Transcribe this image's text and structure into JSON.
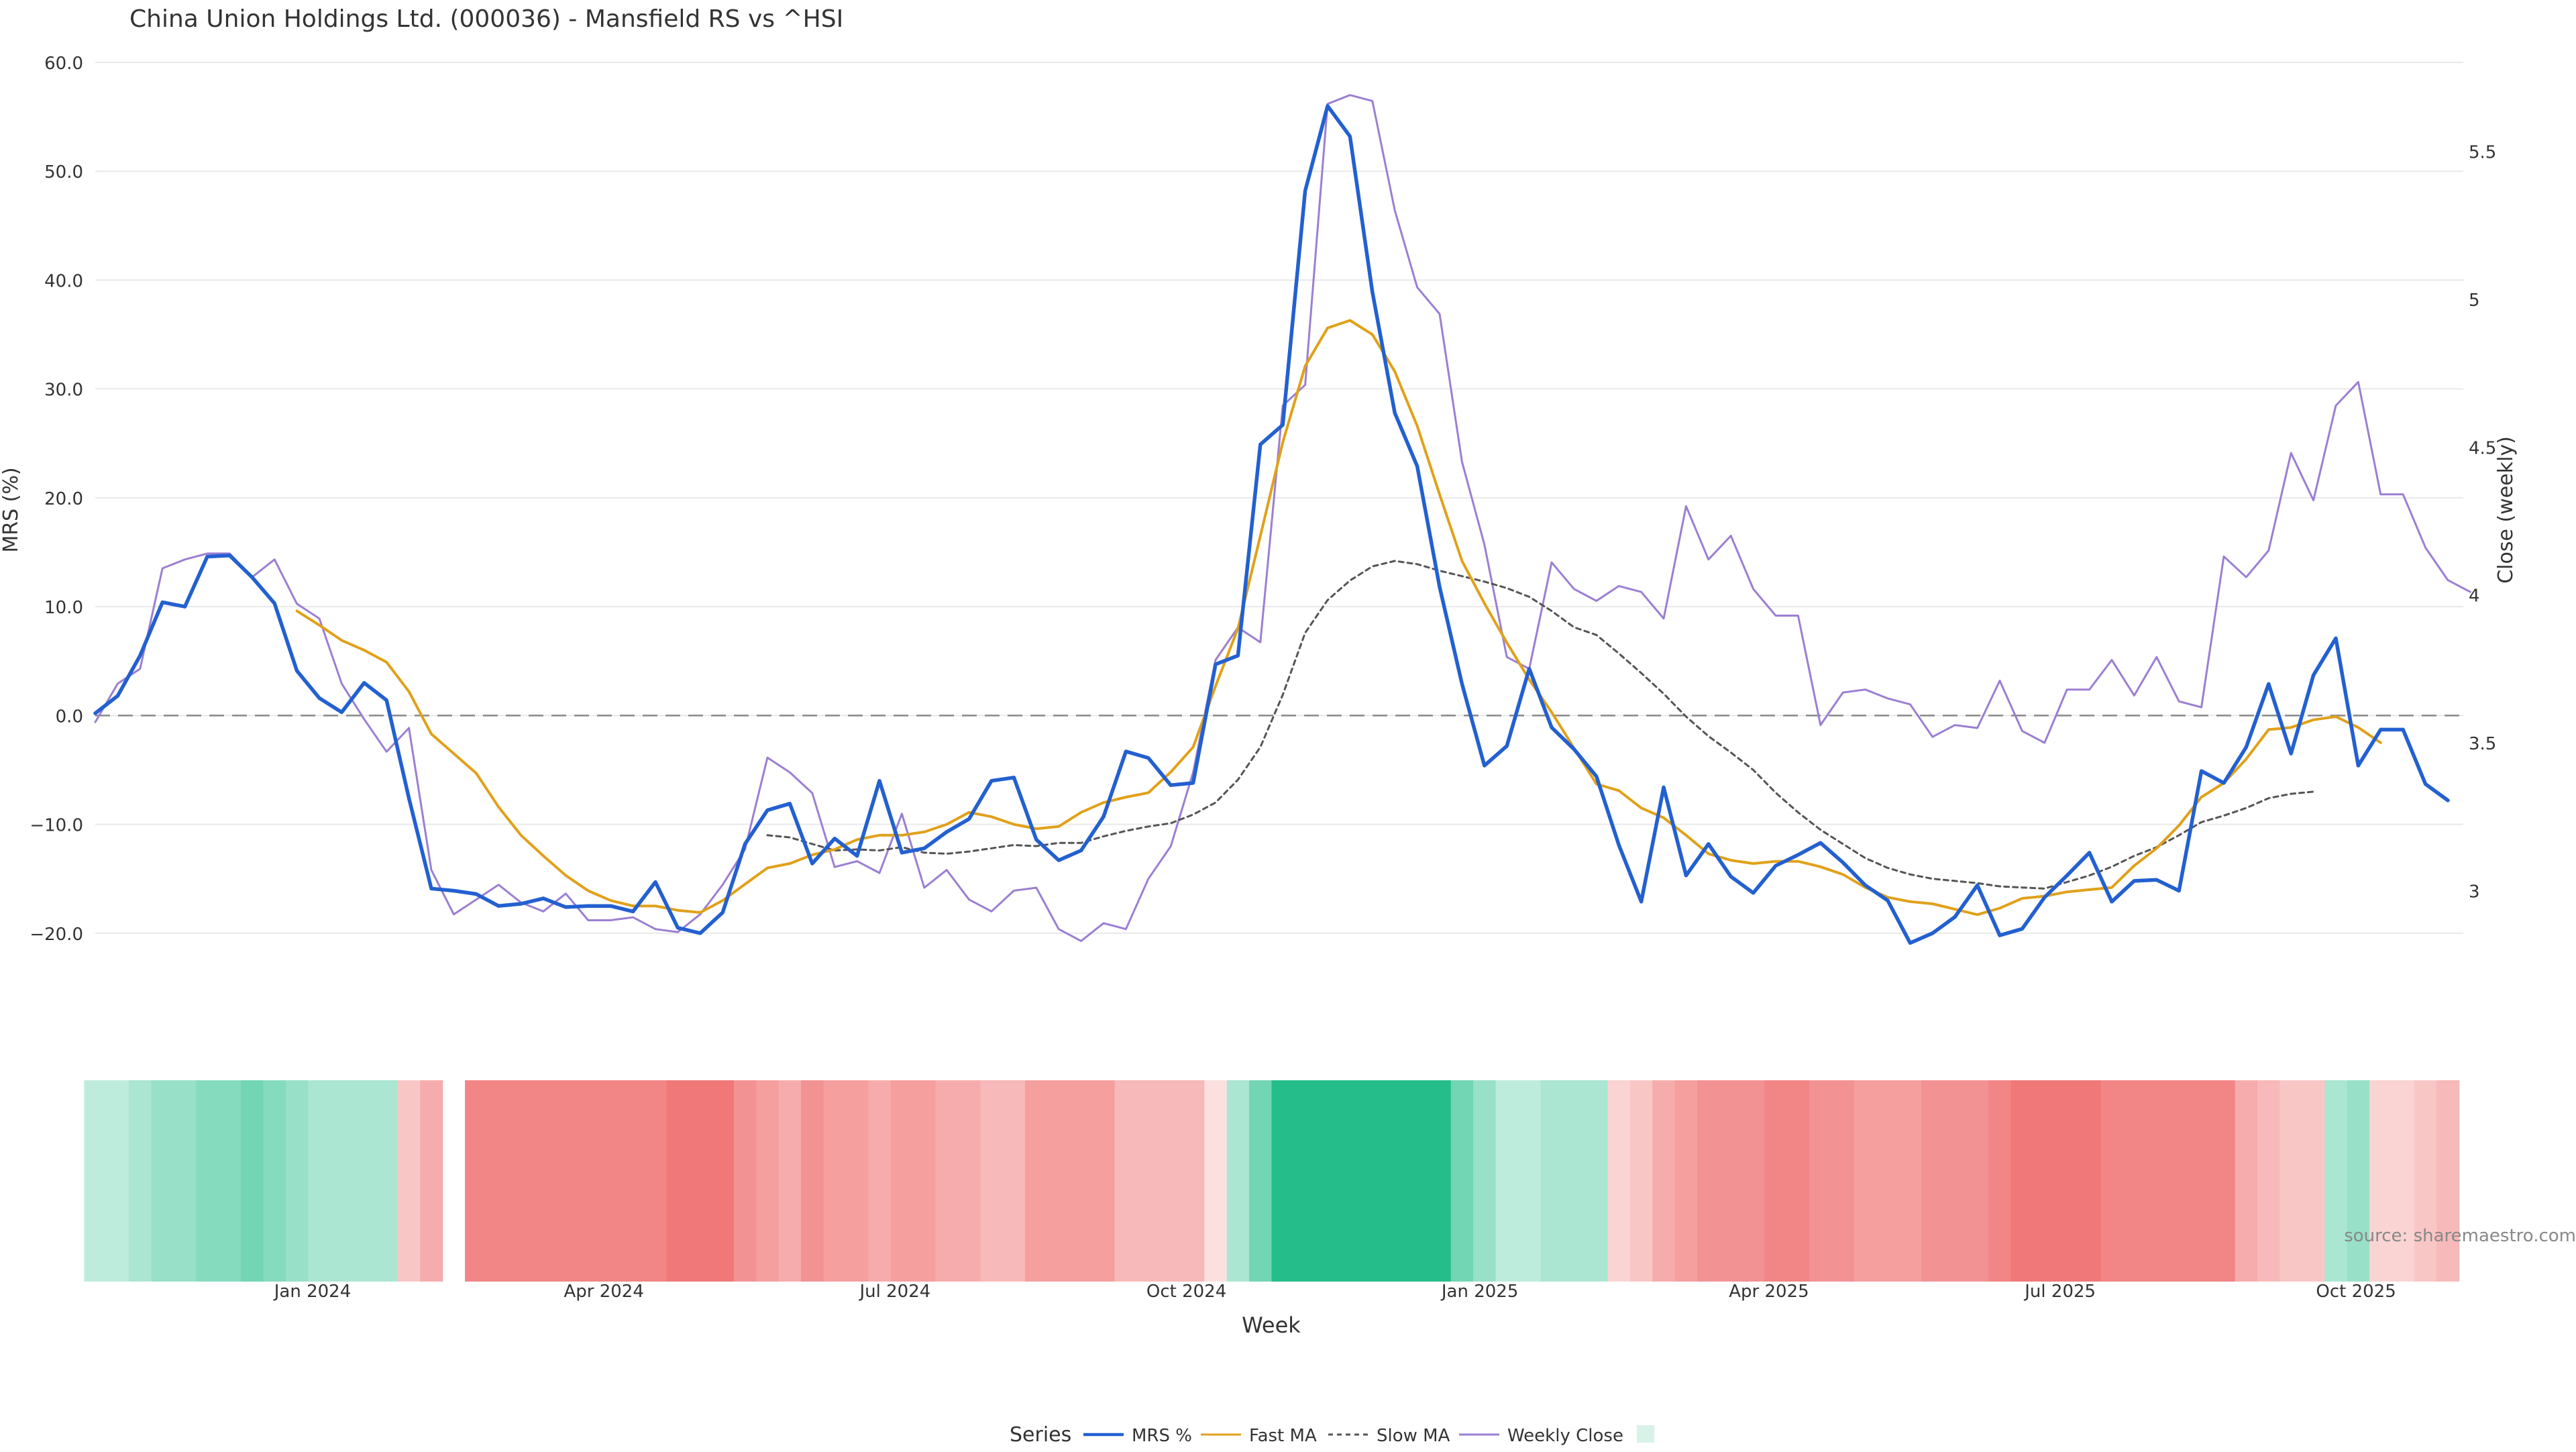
{
  "colors": {
    "mrs": "#2360d0",
    "fast_ma": "#e0a11a",
    "slow_ma": "#555555",
    "weekly_close": "#9b7fd2",
    "zero_line": "#888888",
    "grid": "#e9e9e9",
    "heat_green": "#25be8a",
    "heat_red": "#ef6b6b",
    "text": "#333333"
  },
  "source_text": "source: sharemaestro.com",
  "chart_data": {
    "type": "line",
    "title": "China Union Holdings Ltd. (000036) - Mansfield RS vs ^HSI",
    "xlabel": "Week",
    "ylabel": "MRS (%)",
    "y2label": "Close (weekly)",
    "ylim": [
      -21.8,
      60.8
    ],
    "y2lim": [
      2.79,
      5.83
    ],
    "yticks": [
      60.0,
      50.0,
      40.0,
      30.0,
      20.0,
      10.0,
      0.0,
      -10.0,
      -20.0
    ],
    "ytick_labels": [
      "60.0",
      "50.0",
      "40.0",
      "30.0",
      "20.0",
      "10.0",
      "0.0",
      "−10.0",
      "−20.0"
    ],
    "y2ticks": [
      5.5,
      5,
      4.5,
      4,
      3.5,
      3
    ],
    "y2tick_labels": [
      "5.5",
      "5",
      "4.5",
      "4",
      "3.5",
      "3"
    ],
    "x_tick_labels": [
      "Jan 2024",
      "Apr 2024",
      "Jul 2024",
      "Oct 2024",
      "Jan 2025",
      "Apr 2025",
      "Jul 2025",
      "Oct 2025"
    ],
    "x_tick_weeks": [
      9.7,
      22.7,
      35.7,
      48.7,
      61.8,
      74.7,
      87.7,
      100.9
    ],
    "legend": {
      "title": "Series",
      "position": "bottom-center",
      "entries": [
        "MRS %",
        "Fast MA",
        "Slow MA",
        "Weekly Close",
        ""
      ]
    },
    "series": [
      {
        "name": "MRS %",
        "axis": "left",
        "start_week": 0,
        "values": [
          0.2,
          1.8,
          5.5,
          10.4,
          10.0,
          14.6,
          14.7,
          12.7,
          10.3,
          4.1,
          1.6,
          0.3,
          3.0,
          1.4,
          -7.6,
          -15.9,
          -16.1,
          -16.4,
          -17.5,
          -17.3,
          -16.8,
          -17.6,
          -17.5,
          -17.5,
          -18.0,
          -15.3,
          -19.5,
          -20.0,
          -18.1,
          -11.8,
          -8.7,
          -8.1,
          -13.6,
          -11.3,
          -12.9,
          -6.0,
          -12.6,
          -12.2,
          -10.7,
          -9.5,
          -6.0,
          -5.7,
          -11.4,
          -13.3,
          -12.4,
          -9.3,
          -3.3,
          -3.9,
          -6.4,
          -6.2,
          4.7,
          5.5,
          24.9,
          26.7,
          48.2,
          56.0,
          53.2,
          38.9,
          27.8,
          22.9,
          11.8,
          2.9,
          -4.6,
          -2.8,
          4.3,
          -1.1,
          -3.1,
          -5.6,
          -11.9,
          -17.1,
          -6.6,
          -14.7,
          -11.8,
          -14.8,
          -16.3,
          -13.8,
          -12.8,
          -11.7,
          -13.5,
          -15.6,
          -17.0,
          -20.9,
          -20.0,
          -18.5,
          -15.6,
          -20.2,
          -19.6,
          -16.7,
          -14.7,
          -12.6,
          -17.1,
          -15.2,
          -15.1,
          -16.1,
          -5.1,
          -6.2,
          -2.9,
          2.9,
          -3.5,
          3.7,
          7.1,
          -4.6,
          -1.3,
          -1.3,
          -6.3,
          -7.8
        ]
      },
      {
        "name": "Fast MA",
        "axis": "left",
        "start_week": 9,
        "values": [
          9.6,
          8.3,
          6.9,
          6.0,
          4.9,
          2.2,
          -1.7,
          -3.5,
          -5.3,
          -8.4,
          -11.0,
          -12.9,
          -14.7,
          -16.1,
          -17.0,
          -17.5,
          -17.5,
          -17.9,
          -18.1,
          -17.0,
          -15.5,
          -14.0,
          -13.6,
          -12.8,
          -12.3,
          -11.4,
          -11.0,
          -11.0,
          -10.7,
          -10.0,
          -8.9,
          -9.3,
          -10.0,
          -10.4,
          -10.2,
          -8.9,
          -8.0,
          -7.5,
          -7.1,
          -5.2,
          -2.9,
          2.7,
          8.0,
          16.5,
          25.1,
          32.1,
          35.6,
          36.3,
          35.0,
          31.6,
          26.6,
          20.3,
          14.2,
          10.3,
          6.7,
          3.3,
          0.3,
          -3.0,
          -6.3,
          -6.9,
          -8.5,
          -9.4,
          -11.0,
          -12.7,
          -13.3,
          -13.6,
          -13.4,
          -13.4,
          -13.9,
          -14.6,
          -15.8,
          -16.7,
          -17.1,
          -17.3,
          -17.8,
          -18.3,
          -17.7,
          -16.8,
          -16.6,
          -16.2,
          -16.0,
          -15.8,
          -13.8,
          -12.2,
          -10.1,
          -7.5,
          -6.2,
          -4.0,
          -1.3,
          -1.1,
          -0.4,
          -0.1,
          -1.1,
          -2.5
        ]
      },
      {
        "name": "Slow MA",
        "axis": "left",
        "start_week": 30,
        "values": [
          -11.0,
          -11.2,
          -11.8,
          -12.4,
          -12.3,
          -12.4,
          -12.1,
          -12.6,
          -12.7,
          -12.5,
          -12.2,
          -11.9,
          -12.0,
          -11.7,
          -11.7,
          -11.1,
          -10.6,
          -10.2,
          -9.9,
          -9.1,
          -8.0,
          -5.9,
          -2.9,
          1.9,
          7.6,
          10.6,
          12.4,
          13.7,
          14.2,
          13.9,
          13.3,
          12.8,
          12.3,
          11.7,
          10.9,
          9.6,
          8.1,
          7.4,
          5.7,
          3.9,
          2.0,
          -0.1,
          -1.9,
          -3.4,
          -5.0,
          -7.1,
          -8.9,
          -10.5,
          -11.8,
          -13.1,
          -14.0,
          -14.6,
          -15.0,
          -15.2,
          -15.4,
          -15.7,
          -15.8,
          -15.9,
          -15.3,
          -14.7,
          -13.9,
          -12.9,
          -12.1,
          -11.0,
          -9.8,
          -9.2,
          -8.5,
          -7.6,
          -7.2,
          -7.0
        ]
      },
      {
        "name": "Weekly Close",
        "axis": "right",
        "start_week": 0,
        "values": [
          3.57,
          3.7,
          3.75,
          4.09,
          4.12,
          4.14,
          4.14,
          4.06,
          4.12,
          3.97,
          3.92,
          3.7,
          3.58,
          3.47,
          3.55,
          3.07,
          2.92,
          2.97,
          3.02,
          2.96,
          2.93,
          2.99,
          2.9,
          2.9,
          2.91,
          2.87,
          2.86,
          2.92,
          3.02,
          3.14,
          3.45,
          3.4,
          3.33,
          3.08,
          3.1,
          3.06,
          3.26,
          3.01,
          3.07,
          2.97,
          2.93,
          3.0,
          3.01,
          2.87,
          2.83,
          2.89,
          2.87,
          3.04,
          3.15,
          3.4,
          3.78,
          3.89,
          3.84,
          4.64,
          4.71,
          5.66,
          5.69,
          5.67,
          5.3,
          5.04,
          4.95,
          4.45,
          4.17,
          3.79,
          3.75,
          4.11,
          4.02,
          3.98,
          4.03,
          4.01,
          3.92,
          4.3,
          4.12,
          4.2,
          4.02,
          3.93,
          3.93,
          3.56,
          3.67,
          3.68,
          3.65,
          3.63,
          3.52,
          3.56,
          3.55,
          3.71,
          3.54,
          3.5,
          3.68,
          3.68,
          3.78,
          3.66,
          3.79,
          3.64,
          3.62,
          4.13,
          4.06,
          4.15,
          4.48,
          4.32,
          4.64,
          4.72,
          4.34,
          4.34,
          4.16,
          4.05,
          4.01
        ]
      }
    ],
    "heatmap": {
      "description": "weekly MRS strength strip (green = positive RS, red = negative RS)",
      "values": [
        2,
        2,
        3,
        4,
        4,
        5,
        5,
        6,
        5,
        4,
        3,
        3,
        3,
        3,
        -3,
        -5,
        null,
        -8,
        -8,
        -8,
        -8,
        -8,
        -8,
        -8,
        -8,
        -8,
        -9,
        -9,
        -9,
        -7,
        -6,
        -5,
        -7,
        -6,
        -6,
        -5,
        -6,
        -6,
        -5,
        -5,
        -4,
        -4,
        -6,
        -6,
        -6,
        -6,
        -4,
        -4,
        -4,
        -4,
        -1,
        3,
        6,
        10,
        10,
        10,
        10,
        10,
        10,
        10,
        10,
        6,
        4,
        2,
        2,
        3,
        3,
        3,
        -2,
        -3,
        -5,
        -6,
        -7,
        -7,
        -7,
        -8,
        -8,
        -7,
        -7,
        -6,
        -6,
        -6,
        -7,
        -7,
        -7,
        -8,
        -9,
        -9,
        -9,
        -9,
        -8,
        -8,
        -8,
        -8,
        -8,
        -8,
        -5,
        -4,
        -3,
        -3,
        3,
        4,
        -2,
        -2,
        -3,
        -4
      ]
    }
  }
}
